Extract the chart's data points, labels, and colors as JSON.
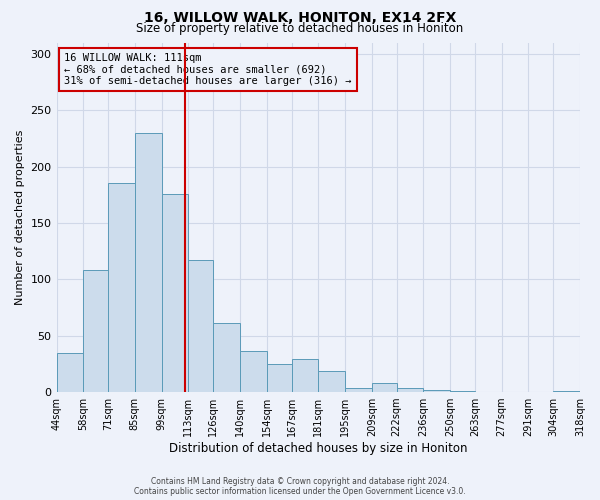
{
  "title": "16, WILLOW WALK, HONITON, EX14 2FX",
  "subtitle": "Size of property relative to detached houses in Honiton",
  "xlabel": "Distribution of detached houses by size in Honiton",
  "ylabel": "Number of detached properties",
  "footer_line1": "Contains HM Land Registry data © Crown copyright and database right 2024.",
  "footer_line2": "Contains public sector information licensed under the Open Government Licence v3.0.",
  "annotation_line1": "16 WILLOW WALK: 111sqm",
  "annotation_line2": "← 68% of detached houses are smaller (692)",
  "annotation_line3": "31% of semi-detached houses are larger (316) →",
  "bar_heights": [
    35,
    108,
    185,
    230,
    176,
    117,
    61,
    36,
    25,
    29,
    19,
    4,
    8,
    4,
    2,
    1,
    0,
    0,
    0,
    1
  ],
  "bin_edges": [
    44,
    58,
    71,
    85,
    99,
    113,
    126,
    140,
    154,
    167,
    181,
    195,
    209,
    222,
    236,
    250,
    263,
    277,
    291,
    304,
    318
  ],
  "tick_labels": [
    "44sqm",
    "58sqm",
    "71sqm",
    "85sqm",
    "99sqm",
    "113sqm",
    "126sqm",
    "140sqm",
    "154sqm",
    "167sqm",
    "181sqm",
    "195sqm",
    "209sqm",
    "222sqm",
    "236sqm",
    "250sqm",
    "263sqm",
    "277sqm",
    "291sqm",
    "304sqm",
    "318sqm"
  ],
  "bar_color": "#ccdcec",
  "bar_edge_color": "#5a9ab8",
  "grid_color": "#d0d8e8",
  "background_color": "#eef2fa",
  "vline_x": 111,
  "vline_color": "#cc0000",
  "annotation_box_color": "#cc0000",
  "ylim": [
    0,
    310
  ],
  "yticks": [
    0,
    50,
    100,
    150,
    200,
    250,
    300
  ]
}
